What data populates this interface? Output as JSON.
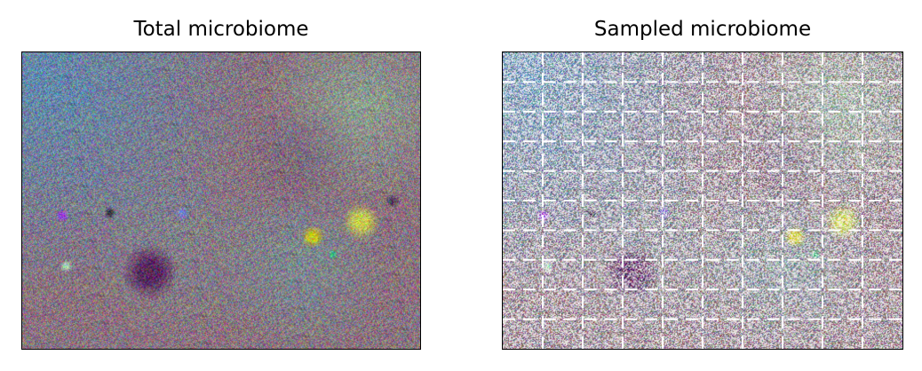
{
  "panels": [
    {
      "title": "Total microbiome",
      "kind": "total"
    },
    {
      "title": "Sampled microbiome",
      "kind": "sampled",
      "grid_rows": 10,
      "grid_cols": 10,
      "grid_color": "#ffffff"
    }
  ],
  "palette": {
    "blue_region": "#5b8fb6",
    "mauve_background": "#8a7480",
    "green_region": "#8fae98",
    "dark_purple_blob": "#5a2a5f",
    "yellow_blob": "#c8c020",
    "lime_blob": "#c8d050",
    "violet_dot": "#9a40e0",
    "teal_region": "#6aa6a8"
  }
}
